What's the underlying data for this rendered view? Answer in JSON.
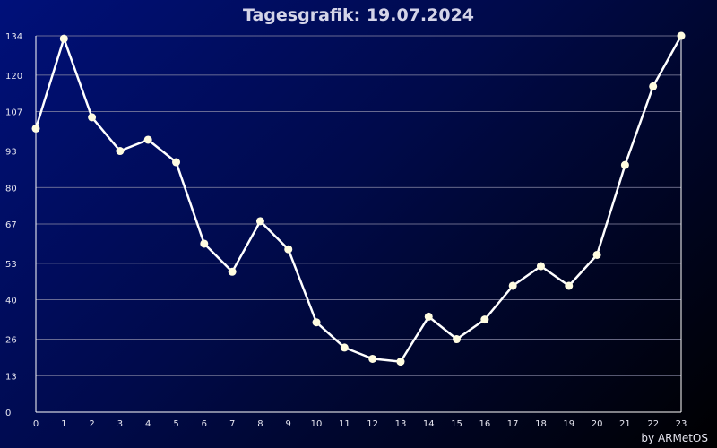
{
  "title": "Tagesgrafik: 19.07.2024",
  "credit": "by ARMetOS",
  "colors": {
    "line": "#ffffff",
    "point": "#fffce0",
    "grid": "#8a8aa6",
    "axis": "#ffffff"
  },
  "chart_data": {
    "type": "line",
    "title": "Tagesgrafik: 19.07.2024",
    "xlabel": "",
    "ylabel": "",
    "x": [
      0,
      1,
      2,
      3,
      4,
      5,
      6,
      7,
      8,
      9,
      10,
      11,
      12,
      13,
      14,
      15,
      16,
      17,
      18,
      19,
      20,
      21,
      22,
      23
    ],
    "x_tick_labels": [
      "0",
      "1",
      "2",
      "3",
      "4",
      "5",
      "6",
      "7",
      "8",
      "9",
      "10",
      "11",
      "12",
      "13",
      "14",
      "15",
      "16",
      "17",
      "18",
      "19",
      "20",
      "21",
      "22",
      "23"
    ],
    "series": [
      {
        "values": [
          101,
          133,
          105,
          93,
          97,
          89,
          60,
          50,
          68,
          58,
          32,
          23,
          19,
          18,
          34,
          26,
          33,
          45,
          52,
          45,
          56,
          88,
          116,
          134
        ]
      }
    ],
    "y_ticks": [
      0,
      13,
      26,
      40,
      53,
      67,
      80,
      93,
      107,
      120,
      134
    ],
    "y_tick_labels": [
      "0",
      "13",
      "26",
      "40",
      "53",
      "67",
      "80",
      "93",
      "107",
      "120",
      "134"
    ],
    "ylim": [
      0,
      134
    ],
    "xlim": [
      0,
      23
    ],
    "grid": true,
    "legend": "none"
  }
}
